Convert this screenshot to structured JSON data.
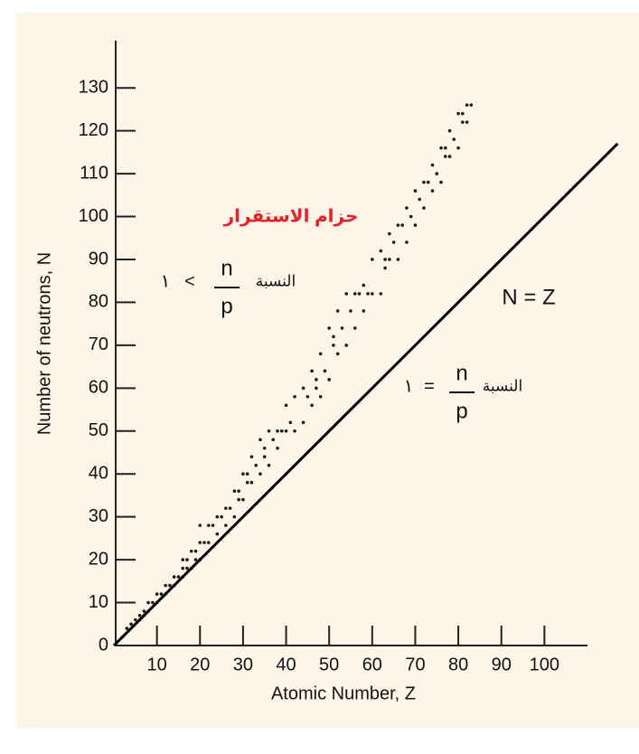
{
  "chart_data": {
    "type": "scatter",
    "x_label": "Atomic Number, Z",
    "y_label": "Number of neutrons, N",
    "xlim": [
      0,
      110
    ],
    "ylim": [
      0,
      141
    ],
    "xticks": [
      10,
      20,
      30,
      40,
      50,
      60,
      70,
      80,
      90,
      100
    ],
    "yticks": [
      0,
      10,
      20,
      30,
      40,
      50,
      60,
      70,
      80,
      90,
      100,
      110,
      120,
      130
    ],
    "series": [
      {
        "name": "حزام الاستقرار",
        "label_color": "#e8202a",
        "color": "#1a1a1a",
        "x": [
          2,
          3,
          4,
          5,
          6,
          6,
          7,
          7,
          8,
          8,
          9,
          10,
          10,
          11,
          12,
          12,
          13,
          14,
          14,
          15,
          16,
          16,
          16,
          17,
          17,
          18,
          18,
          19,
          19,
          20,
          20,
          20,
          21,
          22,
          22,
          23,
          24,
          24,
          25,
          26,
          26,
          27,
          28,
          28,
          29,
          29,
          30,
          30,
          31,
          31,
          32,
          32,
          33,
          34,
          34,
          35,
          35,
          36,
          36,
          37,
          38,
          38,
          39,
          40,
          40,
          41,
          42,
          42,
          44,
          44,
          45,
          46,
          46,
          47,
          47,
          48,
          48,
          49,
          50,
          50,
          51,
          51,
          52,
          52,
          53,
          54,
          54,
          55,
          56,
          56,
          57,
          58,
          58,
          59,
          60,
          60,
          62,
          62,
          63,
          63,
          64,
          64,
          65,
          66,
          66,
          67,
          68,
          68,
          69,
          70,
          70,
          71,
          72,
          72,
          73,
          74,
          74,
          75,
          76,
          76,
          77,
          77,
          78,
          78,
          79,
          80,
          80,
          81,
          81,
          82,
          82,
          83
        ],
        "values": [
          2,
          4,
          5,
          6,
          6,
          7,
          7,
          8,
          8,
          10,
          10,
          10,
          12,
          12,
          12,
          14,
          14,
          14,
          16,
          16,
          16,
          18,
          20,
          18,
          20,
          18,
          22,
          20,
          22,
          20,
          24,
          28,
          24,
          24,
          28,
          28,
          26,
          30,
          30,
          28,
          32,
          32,
          30,
          36,
          34,
          36,
          34,
          40,
          38,
          40,
          38,
          44,
          42,
          40,
          48,
          44,
          46,
          42,
          50,
          48,
          46,
          50,
          50,
          50,
          56,
          52,
          50,
          58,
          52,
          60,
          58,
          56,
          64,
          60,
          62,
          58,
          68,
          64,
          62,
          74,
          70,
          72,
          68,
          78,
          74,
          70,
          82,
          78,
          74,
          82,
          82,
          78,
          84,
          82,
          82,
          90,
          82,
          92,
          88,
          90,
          90,
          96,
          94,
          90,
          98,
          98,
          94,
          102,
          100,
          98,
          106,
          104,
          102,
          108,
          108,
          106,
          112,
          110,
          108,
          116,
          114,
          116,
          114,
          120,
          118,
          116,
          124,
          122,
          124,
          122,
          126,
          126
        ]
      },
      {
        "name": "N = Z",
        "color": "#000000",
        "type": "line",
        "x": [
          0,
          117
        ],
        "values": [
          0,
          117
        ]
      }
    ],
    "annotations": [
      {
        "value": "١",
        "relation": "<",
        "numerator": "n",
        "denominator": "p",
        "label": "النسبة"
      },
      {
        "value": "١",
        "relation": "=",
        "numerator": "n",
        "denominator": "p",
        "label": "النسبة"
      }
    ]
  }
}
